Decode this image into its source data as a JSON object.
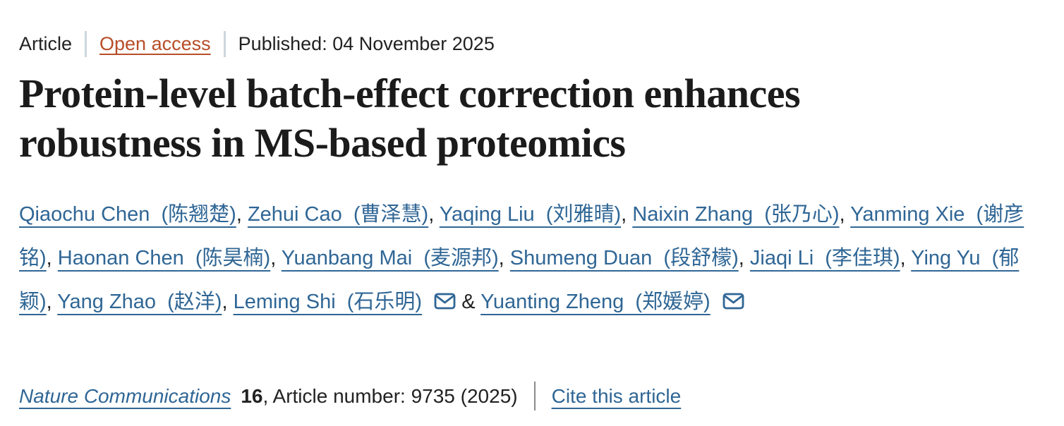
{
  "meta": {
    "article_type": "Article",
    "open_access_label": "Open access",
    "published": "Published: 04 November 2025"
  },
  "title": {
    "full": "Protein-level batch-effect correction enhances robustness in MS-based proteomics",
    "lines": [
      "Protein-level batch-effect correction enhances",
      "robustness in MS-based proteomics"
    ]
  },
  "authors": {
    "separator": ", ",
    "ampersand": " & ",
    "list": [
      {
        "name": "Qiaochu Chen  (陈翘楚)",
        "email": false
      },
      {
        "name": "Zehui Cao  (曹泽慧)",
        "email": false
      },
      {
        "name": "Yaqing Liu  (刘雅晴)",
        "email": false
      },
      {
        "name": "Naixin Zhang  (张乃心)",
        "email": false
      },
      {
        "name": "Yanming Xie  (谢彦铭)",
        "email": false
      },
      {
        "name": "Haonan Chen  (陈昊楠)",
        "email": false
      },
      {
        "name": "Yuanbang Mai  (麦源邦)",
        "email": false
      },
      {
        "name": "Shumeng Duan  (段舒檬)",
        "email": false
      },
      {
        "name": "Jiaqi Li  (李佳琪)",
        "email": false
      },
      {
        "name": "Ying Yu  (郁颖)",
        "email": false
      },
      {
        "name": "Yang Zhao  (赵洋)",
        "email": false
      },
      {
        "name": "Leming Shi  (石乐明)",
        "email": true
      },
      {
        "name": "Yuanting Zheng  (郑媛婷)",
        "email": true
      }
    ]
  },
  "journal": {
    "name": "Nature Communications",
    "volume": "16",
    "rest": ", Article number: 9735 (2025)",
    "cite_label": "Cite this article"
  },
  "colors": {
    "link_blue": "#2f6695",
    "open_access_orange": "#b74e28",
    "text": "#222222",
    "title": "#1b1b1b",
    "separator_light": "#ccd7de",
    "separator_gray": "#8a8a8a"
  }
}
